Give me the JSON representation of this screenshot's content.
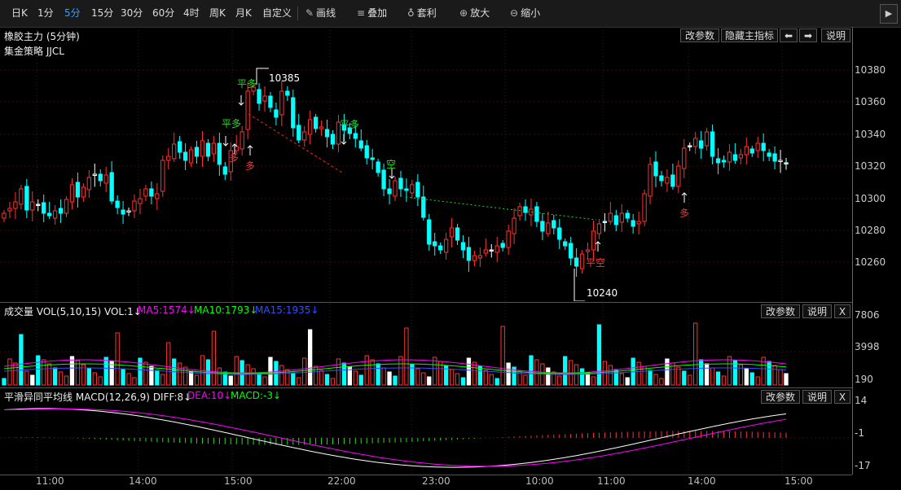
{
  "toolbar": {
    "items": [
      {
        "label": "日K",
        "active": false
      },
      {
        "label": "1分",
        "active": false
      },
      {
        "label": "5分",
        "active": true
      },
      {
        "label": "15分",
        "active": false
      },
      {
        "label": "30分",
        "active": false
      },
      {
        "label": "60分",
        "active": false
      },
      {
        "label": "4时",
        "active": false
      },
      {
        "label": "周K",
        "active": false
      },
      {
        "label": "月K",
        "active": false
      },
      {
        "label": "自定义",
        "active": false
      }
    ],
    "tools": [
      {
        "label": "画线",
        "icon": "pencil-icon",
        "glyph": "✎"
      },
      {
        "label": "叠加",
        "icon": "layers-icon",
        "glyph": "≡"
      },
      {
        "label": "套利",
        "icon": "money-bag-icon",
        "glyph": "♁"
      },
      {
        "label": "放大",
        "icon": "zoom-in-icon",
        "glyph": "⊕"
      },
      {
        "label": "缩小",
        "icon": "zoom-out-icon",
        "glyph": "⊖"
      }
    ],
    "next_icon": "chevron-right-icon",
    "next_glyph": "▶"
  },
  "main_pane": {
    "title": "橡胶主力 (5分钟)",
    "strategy": "集金策略 JJCL",
    "buttons": {
      "params": "改参数",
      "hide": "隐藏主指标",
      "left": "⬅",
      "right": "➡",
      "help": "说明"
    },
    "high_label": "10385",
    "low_label": "10240",
    "signals": [
      "平多",
      "平多",
      "平多",
      "多",
      "多",
      "空",
      "平空",
      "多"
    ]
  },
  "vol_pane": {
    "name": "成交量",
    "spec": "VOL(5,10,15)",
    "vol": "VOL:1↓",
    "ma5": "MA5:1574↓",
    "ma10": "MA10:1793↓",
    "ma15": "MA15:1935↓",
    "buttons": {
      "params": "改参数",
      "help": "说明",
      "close": "X"
    }
  },
  "macd_pane": {
    "name": "平滑异同平均线",
    "spec": "MACD(12,26,9)",
    "diff": "DIFF:8↓",
    "dea": "DEA:10↓",
    "macd": "MACD:-3↓",
    "buttons": {
      "params": "改参数",
      "help": "说明",
      "close": "X"
    }
  },
  "axes": {
    "price_ticks": [
      "10380",
      "10360",
      "10340",
      "10320",
      "10300",
      "10280",
      "10260"
    ],
    "vol_ticks": [
      "7806",
      "3998",
      "190"
    ],
    "macd_ticks": [
      "14",
      "-1",
      "-17"
    ],
    "time_ticks": [
      "11:00",
      "14:00",
      "15:00",
      "22:00",
      "23:00",
      "10:00",
      "11:00",
      "14:00",
      "15:00"
    ]
  },
  "colors": {
    "up": "#ff3232",
    "down": "#00ffff",
    "ma5": "#ff00ff",
    "ma10": "#00ff00",
    "ma15": "#3050ff",
    "signal_green": "#22dd22",
    "signal_red": "#ff3030",
    "active": "#3aa0ff"
  },
  "chart_data": {
    "type": "candlestick",
    "title": "橡胶主力 (5分钟)",
    "x": [
      "11:00",
      "14:00",
      "15:00",
      "22:00",
      "23:00",
      "10:00",
      "11:00",
      "14:00",
      "15:00"
    ],
    "ylim": [
      10240,
      10390
    ],
    "annotations": [
      {
        "text": "10385",
        "kind": "high"
      },
      {
        "text": "10240",
        "kind": "low"
      }
    ],
    "series": [
      {
        "name": "VOL",
        "value_text": "1"
      },
      {
        "name": "MA5",
        "value_text": "1574"
      },
      {
        "name": "MA10",
        "value_text": "1793"
      },
      {
        "name": "MA15",
        "value_text": "1935"
      },
      {
        "name": "DIFF",
        "value_text": "8"
      },
      {
        "name": "DEA",
        "value_text": "10"
      },
      {
        "name": "MACD",
        "value_text": "-3"
      }
    ]
  }
}
